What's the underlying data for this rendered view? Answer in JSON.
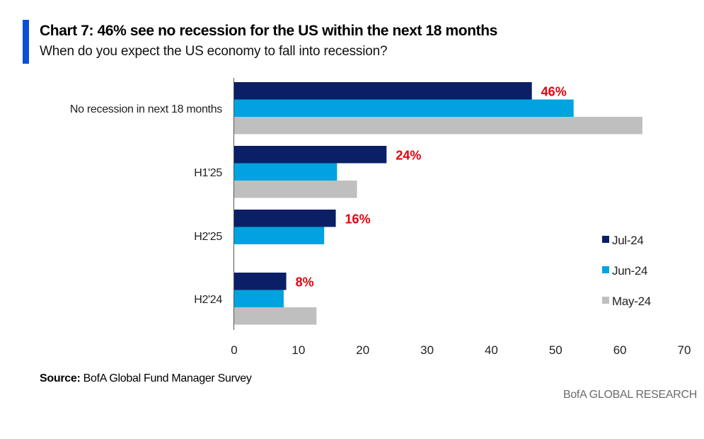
{
  "header": {
    "title": "Chart 7: 46% see no recession for the US within the next 18 months",
    "subtitle": "When do you expect the US economy to fall into recession?"
  },
  "footer": {
    "source_label": "Source:",
    "source_text": "BofA Global Fund Manager Survey",
    "brand": "BofA GLOBAL RESEARCH"
  },
  "colors": {
    "accent": "#0a50d6",
    "jul": "#0b1f66",
    "jun": "#00a3e0",
    "may": "#bfbfbf",
    "label": "#e8000b"
  },
  "chart_data": {
    "type": "bar",
    "orientation": "horizontal",
    "categories": [
      "No recession in next 18 months",
      "H1'25",
      "H2'25",
      "H2'24"
    ],
    "series": [
      {
        "name": "Jul-24",
        "color": "#0b1f66",
        "values": [
          46.3,
          23.7,
          15.8,
          8.1
        ],
        "labels": [
          "46%",
          "24%",
          "16%",
          "8%"
        ]
      },
      {
        "name": "Jun-24",
        "color": "#00a3e0",
        "values": [
          52.8,
          16.0,
          14.0,
          7.7
        ]
      },
      {
        "name": "May-24",
        "color": "#bfbfbf",
        "values": [
          63.5,
          19.1,
          null,
          12.8
        ]
      }
    ],
    "xlim": [
      0,
      70
    ],
    "xticks": [
      0,
      10,
      20,
      30,
      40,
      50,
      60,
      70
    ],
    "grid": false,
    "legend_position": "right"
  }
}
